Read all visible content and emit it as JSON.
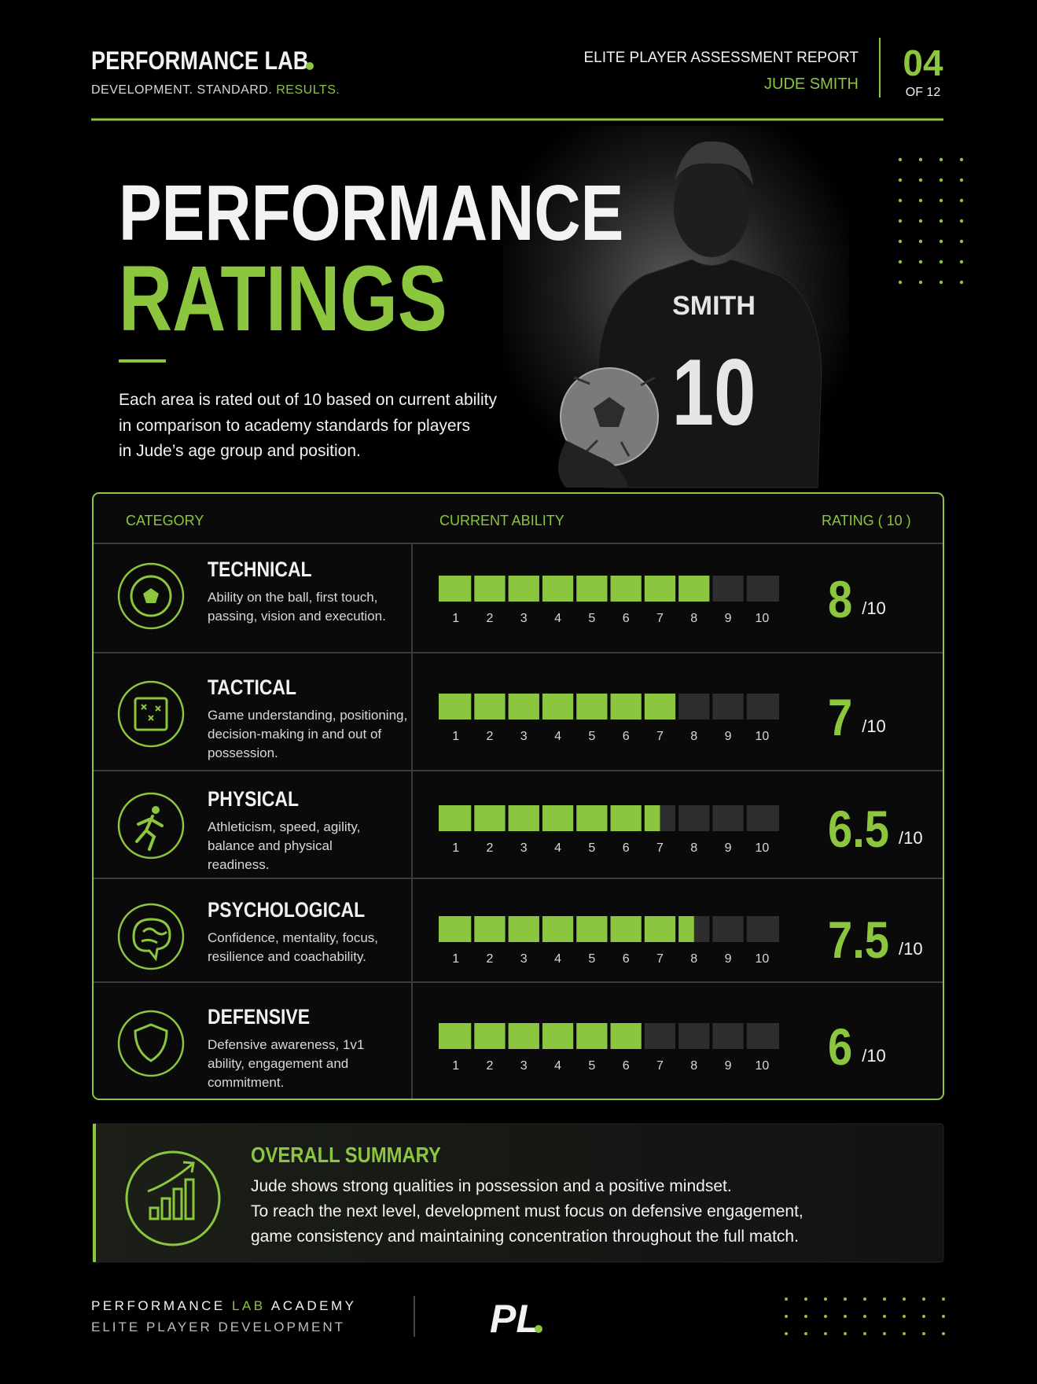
{
  "header": {
    "brand": "PERFORMANCE LAB",
    "tagline": "DEVELOPMENT. STANDARD.",
    "tagline_accent": "RESULTS.",
    "report_title": "ELITE PLAYER ASSESSMENT REPORT",
    "player_name": "JUDE SMITH",
    "page": "04",
    "page_total": "OF 12"
  },
  "hero": {
    "title_line1": "PERFORMANCE",
    "title_line2": "RATINGS",
    "intro": [
      "Each area is rated out of 10 based on current ability",
      "in comparison to academy standards for players",
      "in Jude’s age group and position."
    ],
    "jersey_name": "SMITH",
    "jersey_number": "10"
  },
  "table": {
    "headers": [
      "CATEGORY",
      "CURRENT ABILITY",
      "RATING ( 10 )"
    ],
    "scale": [
      1,
      2,
      3,
      4,
      5,
      6,
      7,
      8,
      9,
      10
    ],
    "out_of": "/10",
    "rows": [
      {
        "name": "TECHNICAL",
        "description": [
          "Ability on the ball, first touch,",
          "passing, vision and execution."
        ],
        "rating": 8
      },
      {
        "name": "TACTICAL",
        "description": [
          "Game understanding, positioning,",
          "decision-making in and out of",
          "possession."
        ],
        "rating": 7
      },
      {
        "name": "PHYSICAL",
        "description": [
          "Athleticism, speed, agility,",
          "balance and physical",
          "readiness."
        ],
        "rating": 6.5
      },
      {
        "name": "PSYCHOLOGICAL",
        "description": [
          "Confidence, mentality, focus,",
          "resilience and coachability."
        ],
        "rating": 7.5
      },
      {
        "name": "DEFENSIVE",
        "description": [
          "Defensive awareness, 1v1",
          "ability, engagement and",
          "commitment."
        ],
        "rating": 6
      }
    ]
  },
  "summary": {
    "title": "OVERALL SUMMARY",
    "text": [
      "Jude shows strong qualities in possession and a positive mindset.",
      "To reach the next level, development must focus on defensive engagement,",
      "game consistency and maintaining concentration throughout the full match."
    ]
  },
  "footer": {
    "line1_a": "PERFORMANCE",
    "line1_b": "LAB",
    "line1_c": "ACADEMY",
    "line2": "ELITE PLAYER DEVELOPMENT",
    "logo": "PL"
  }
}
